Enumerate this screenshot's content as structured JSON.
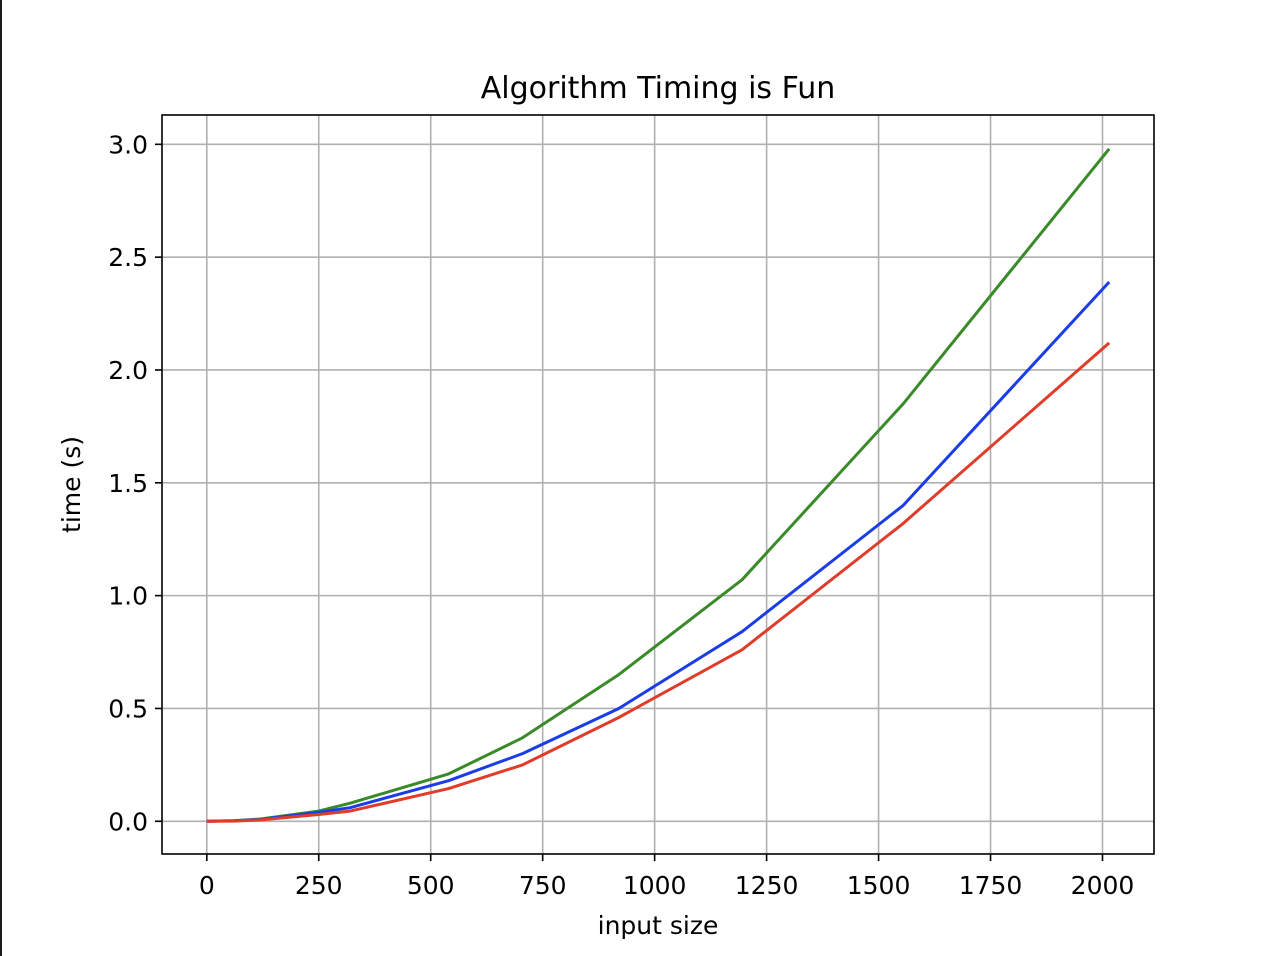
{
  "chart_data": {
    "type": "line",
    "title": "Algorithm Timing is Fun",
    "xlabel": "input size",
    "ylabel": "time (s)",
    "xlim": [
      -100,
      2115
    ],
    "ylim": [
      -0.145,
      3.13
    ],
    "xticks": [
      0,
      250,
      500,
      750,
      1000,
      1250,
      1500,
      1750,
      2000
    ],
    "yticks": [
      0.0,
      0.5,
      1.0,
      1.5,
      2.0,
      2.5,
      3.0
    ],
    "xtick_labels": [
      "0",
      "250",
      "500",
      "750",
      "1000",
      "1250",
      "1500",
      "1750",
      "2000"
    ],
    "ytick_labels": [
      "0.0",
      "0.5",
      "1.0",
      "1.5",
      "2.0",
      "2.5",
      "3.0"
    ],
    "grid": true,
    "series": [
      {
        "color": "#3a8a2a",
        "x": [
          0,
          60,
          120,
          250,
          320,
          540,
          705,
          920,
          1195,
          1555,
          2015
        ],
        "y": [
          0.0,
          0.002,
          0.01,
          0.045,
          0.08,
          0.21,
          0.37,
          0.65,
          1.07,
          1.85,
          2.98
        ]
      },
      {
        "color": "#1a3de8",
        "x": [
          0,
          60,
          120,
          250,
          320,
          540,
          705,
          920,
          1195,
          1555,
          2015
        ],
        "y": [
          0.0,
          0.002,
          0.008,
          0.04,
          0.06,
          0.18,
          0.3,
          0.5,
          0.84,
          1.4,
          2.39
        ]
      },
      {
        "color": "#e03c2a",
        "x": [
          0,
          60,
          120,
          250,
          320,
          540,
          705,
          920,
          1195,
          1555,
          2015
        ],
        "y": [
          0.0,
          0.001,
          0.006,
          0.03,
          0.045,
          0.145,
          0.25,
          0.46,
          0.76,
          1.32,
          2.12
        ]
      }
    ]
  }
}
